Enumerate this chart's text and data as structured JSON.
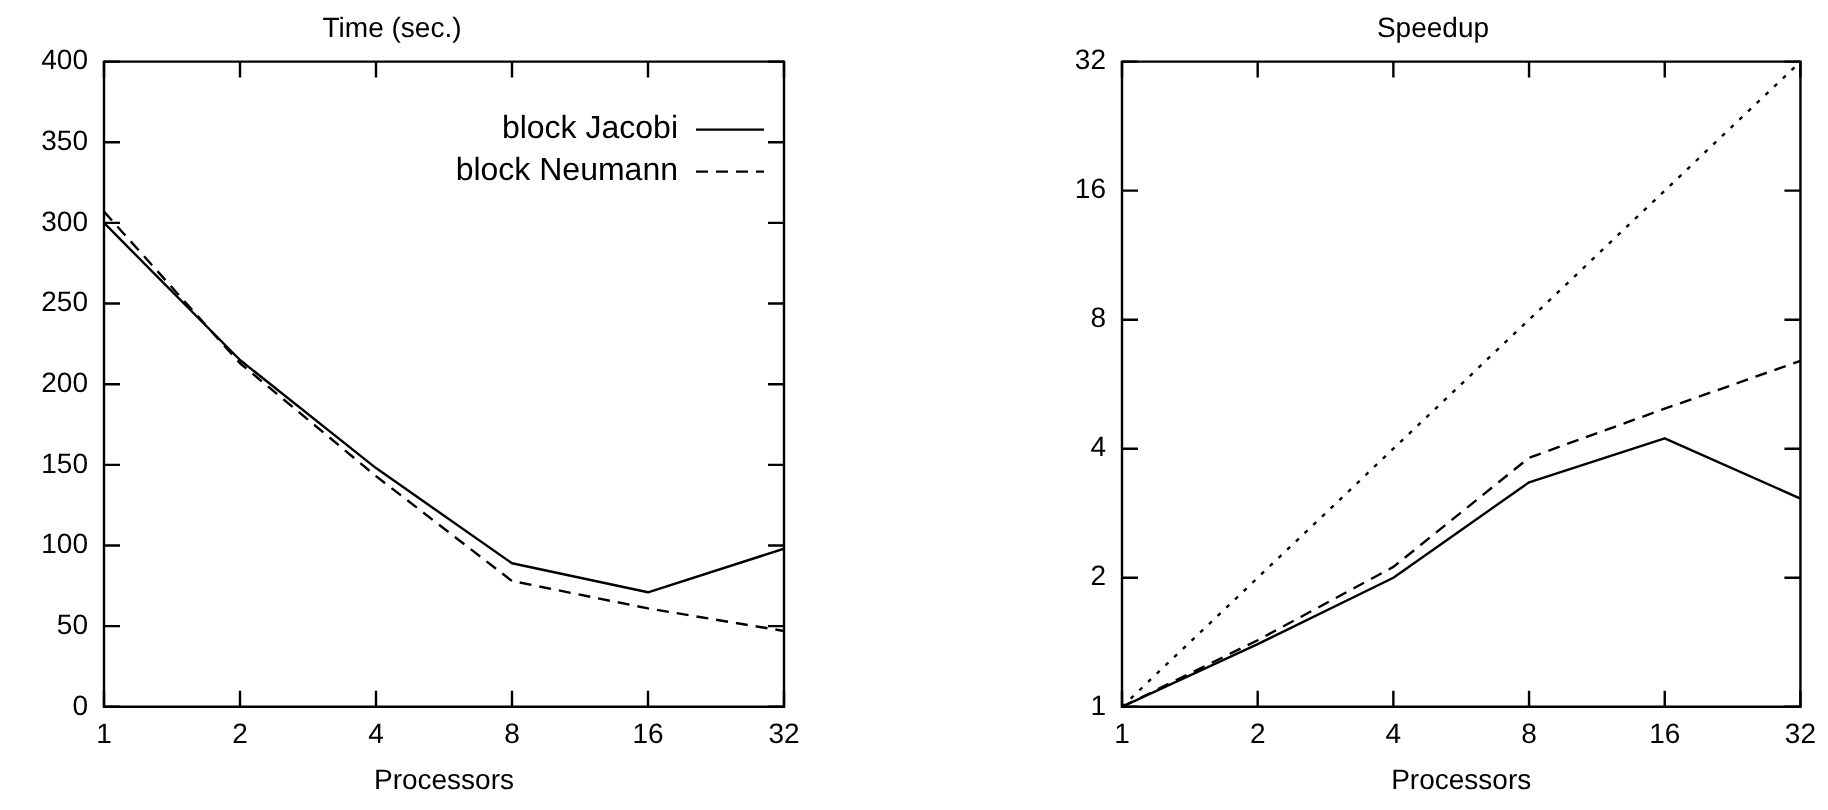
{
  "chart_data": [
    {
      "type": "line",
      "title": "Time (sec.)",
      "xlabel": "Processors",
      "x": [
        1,
        2,
        4,
        8,
        16,
        32
      ],
      "log": "x",
      "xlim": [
        1,
        32
      ],
      "xticks": [
        1,
        2,
        4,
        8,
        16,
        32
      ],
      "ylim": [
        0,
        400
      ],
      "yticks": [
        0,
        50,
        100,
        150,
        200,
        250,
        300,
        350,
        400
      ],
      "grid": false,
      "legend": "top right",
      "marker": "none",
      "series": [
        {
          "name": "block Jacobi",
          "color": "#000000",
          "line_style": "solid",
          "values": [
            300,
            215,
            148,
            89,
            71,
            98
          ]
        },
        {
          "name": "block Neumann",
          "color": "#000000",
          "line_style": "dashed",
          "values": [
            307,
            213,
            143,
            78,
            61,
            47
          ]
        }
      ]
    },
    {
      "type": "line",
      "title": "Speedup",
      "xlabel": "Processors",
      "x": [
        1,
        2,
        4,
        8,
        16,
        32
      ],
      "log": "xy",
      "xlim": [
        1,
        32
      ],
      "xticks": [
        1,
        2,
        4,
        8,
        16,
        32
      ],
      "ylim": [
        1,
        32
      ],
      "yticks": [
        1,
        2,
        4,
        8,
        16,
        32
      ],
      "grid": false,
      "legend": false,
      "marker": "none",
      "series": [
        {
          "color": "#000000",
          "line_style": "dotted",
          "values": [
            1,
            2,
            4,
            8,
            16,
            32
          ]
        },
        {
          "color": "#000000",
          "line_style": "dashed",
          "values": [
            1,
            1.43,
            2.12,
            3.81,
            4.96,
            6.41
          ]
        },
        {
          "color": "#000000",
          "line_style": "solid",
          "values": [
            1,
            1.4,
            2,
            3.34,
            4.23,
            3.06
          ]
        }
      ]
    }
  ]
}
